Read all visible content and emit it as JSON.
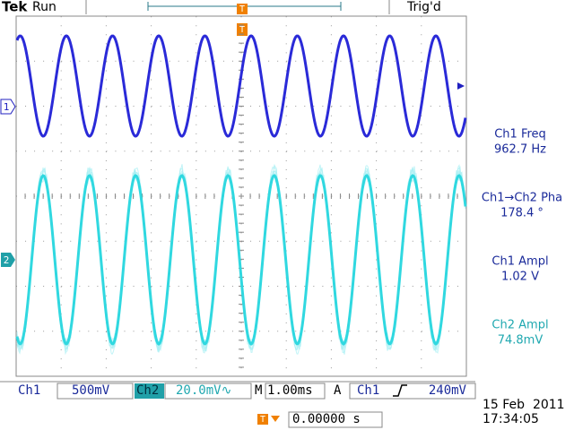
{
  "header": {
    "brand": "Tek",
    "status": "Run",
    "trigger_state": "Trig'd"
  },
  "markers": {
    "ch1": "1",
    "ch2": "2",
    "trigger": "T"
  },
  "measurements": [
    {
      "label": "Ch1 Freq",
      "value": "962.7 Hz"
    },
    {
      "label": "Ch1→Ch2 Pha",
      "value": "178.4 °"
    },
    {
      "label": "Ch1 Ampl",
      "value": "1.02 V"
    },
    {
      "label": "Ch2 Ampl",
      "value": "74.8mV"
    }
  ],
  "status_bar": {
    "ch1_label": "Ch1",
    "ch1_scale": "500mV",
    "ch2_label": "Ch2",
    "ch2_scale": "20.0mV∿",
    "time_label": "M",
    "time_scale": "1.00ms",
    "trigger_label": "A",
    "trigger_source": "Ch1",
    "trigger_level": "240mV"
  },
  "date": "15 Feb  2011",
  "time": "17:34:05",
  "trigger_position": "0.00000 s"
}
